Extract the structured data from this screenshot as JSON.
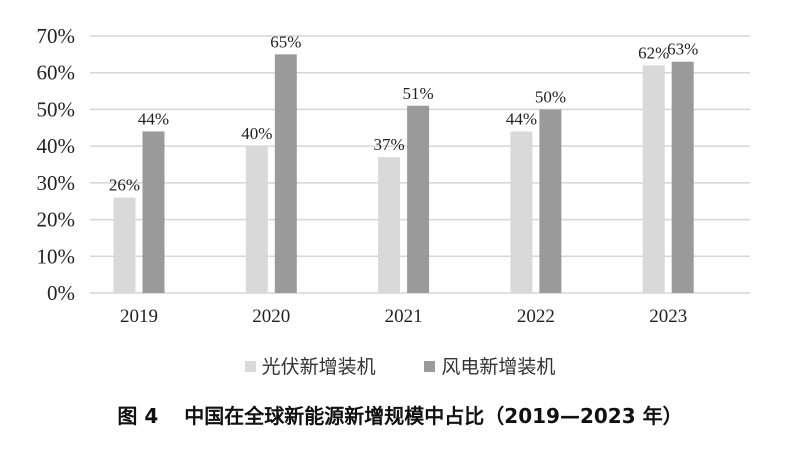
{
  "chart_data": {
    "type": "bar",
    "title": "中国在全球新能源新增规模中占比（2019—2023 年）",
    "figure_label": "图 4",
    "categories": [
      "2019",
      "2020",
      "2021",
      "2022",
      "2023"
    ],
    "series": [
      {
        "name": "光伏新增装机",
        "values": [
          26,
          40,
          37,
          44,
          62
        ],
        "labels": [
          "26%",
          "40%",
          "37%",
          "44%",
          "62%"
        ],
        "color": "#d9d9d9"
      },
      {
        "name": "风电新增装机",
        "values": [
          44,
          65,
          51,
          50,
          63
        ],
        "labels": [
          "44%",
          "65%",
          "51%",
          "50%",
          "63%"
        ],
        "color": "#9a9a9a"
      }
    ],
    "xlabel": "",
    "ylabel": "",
    "ylim": [
      0,
      70
    ],
    "yticks": [
      "0%",
      "10%",
      "20%",
      "30%",
      "40%",
      "50%",
      "60%",
      "70%"
    ],
    "grid": true,
    "legend": "bottom"
  }
}
